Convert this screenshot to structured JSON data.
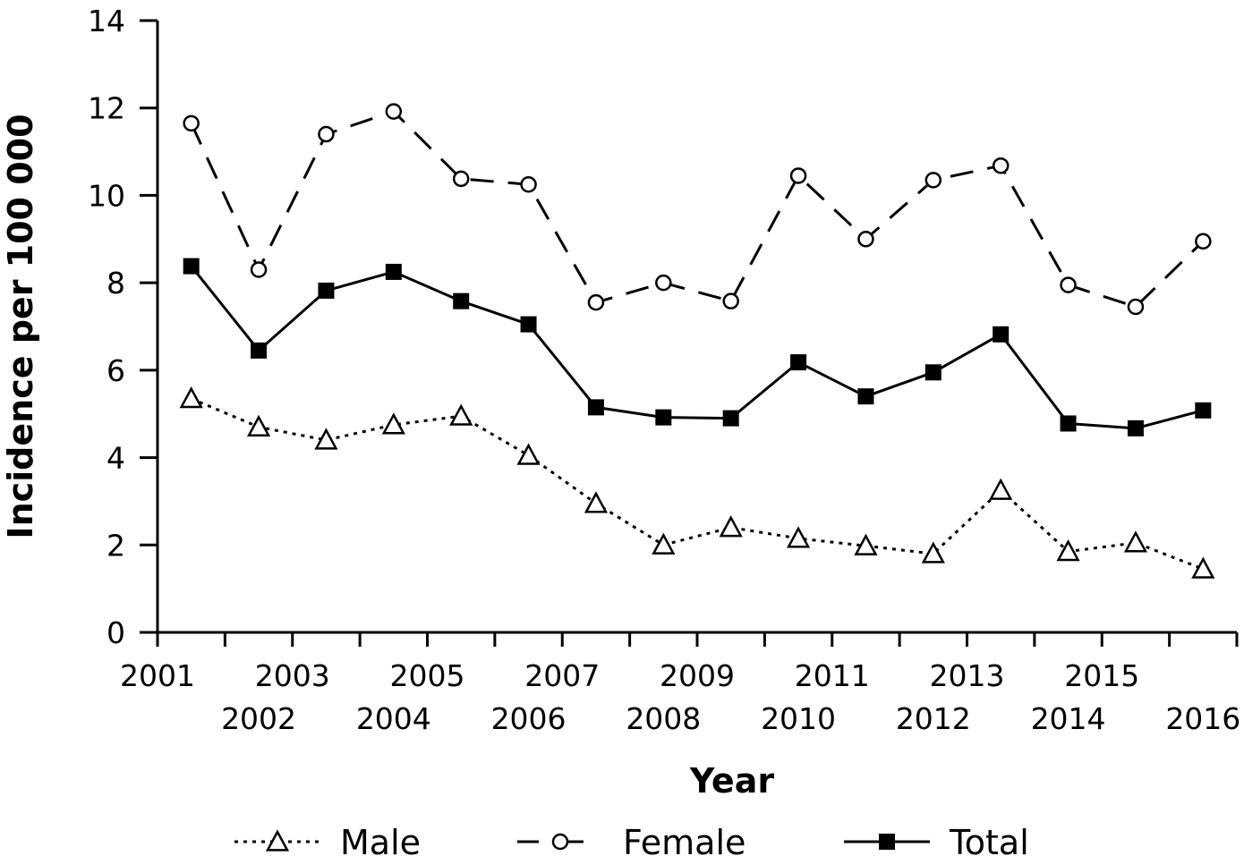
{
  "chart_data": {
    "type": "line",
    "title": "",
    "xlabel": "Year",
    "ylabel": "Incidence per 100 000",
    "categories": [
      "2001",
      "2002",
      "2003",
      "2004",
      "2005",
      "2006",
      "2007",
      "2008",
      "2009",
      "2010",
      "2011",
      "2012",
      "2013",
      "2014",
      "2015",
      "2016"
    ],
    "ylim": [
      0,
      14
    ],
    "yticks": [
      "0",
      "2",
      "4",
      "6",
      "8",
      "10",
      "12",
      "14"
    ],
    "grid": false,
    "legend_position": "bottom",
    "series": [
      {
        "name": "Male",
        "style": "dotted",
        "marker": "triangle-open",
        "values": [
          5.35,
          4.7,
          4.4,
          4.75,
          4.95,
          4.05,
          2.95,
          2.0,
          2.4,
          2.15,
          1.98,
          1.8,
          3.25,
          1.85,
          2.05,
          1.45
        ]
      },
      {
        "name": "Female",
        "style": "dashed",
        "marker": "circle-open",
        "values": [
          11.65,
          8.3,
          11.4,
          11.92,
          10.38,
          10.25,
          7.55,
          8.0,
          7.58,
          10.45,
          9.0,
          10.35,
          10.68,
          7.95,
          7.45,
          8.95
        ]
      },
      {
        "name": "Total",
        "style": "solid",
        "marker": "square-filled",
        "values": [
          8.38,
          6.45,
          7.82,
          8.25,
          7.58,
          7.05,
          5.15,
          4.92,
          4.9,
          6.18,
          5.4,
          5.95,
          6.82,
          4.78,
          4.67,
          5.08
        ]
      }
    ]
  }
}
